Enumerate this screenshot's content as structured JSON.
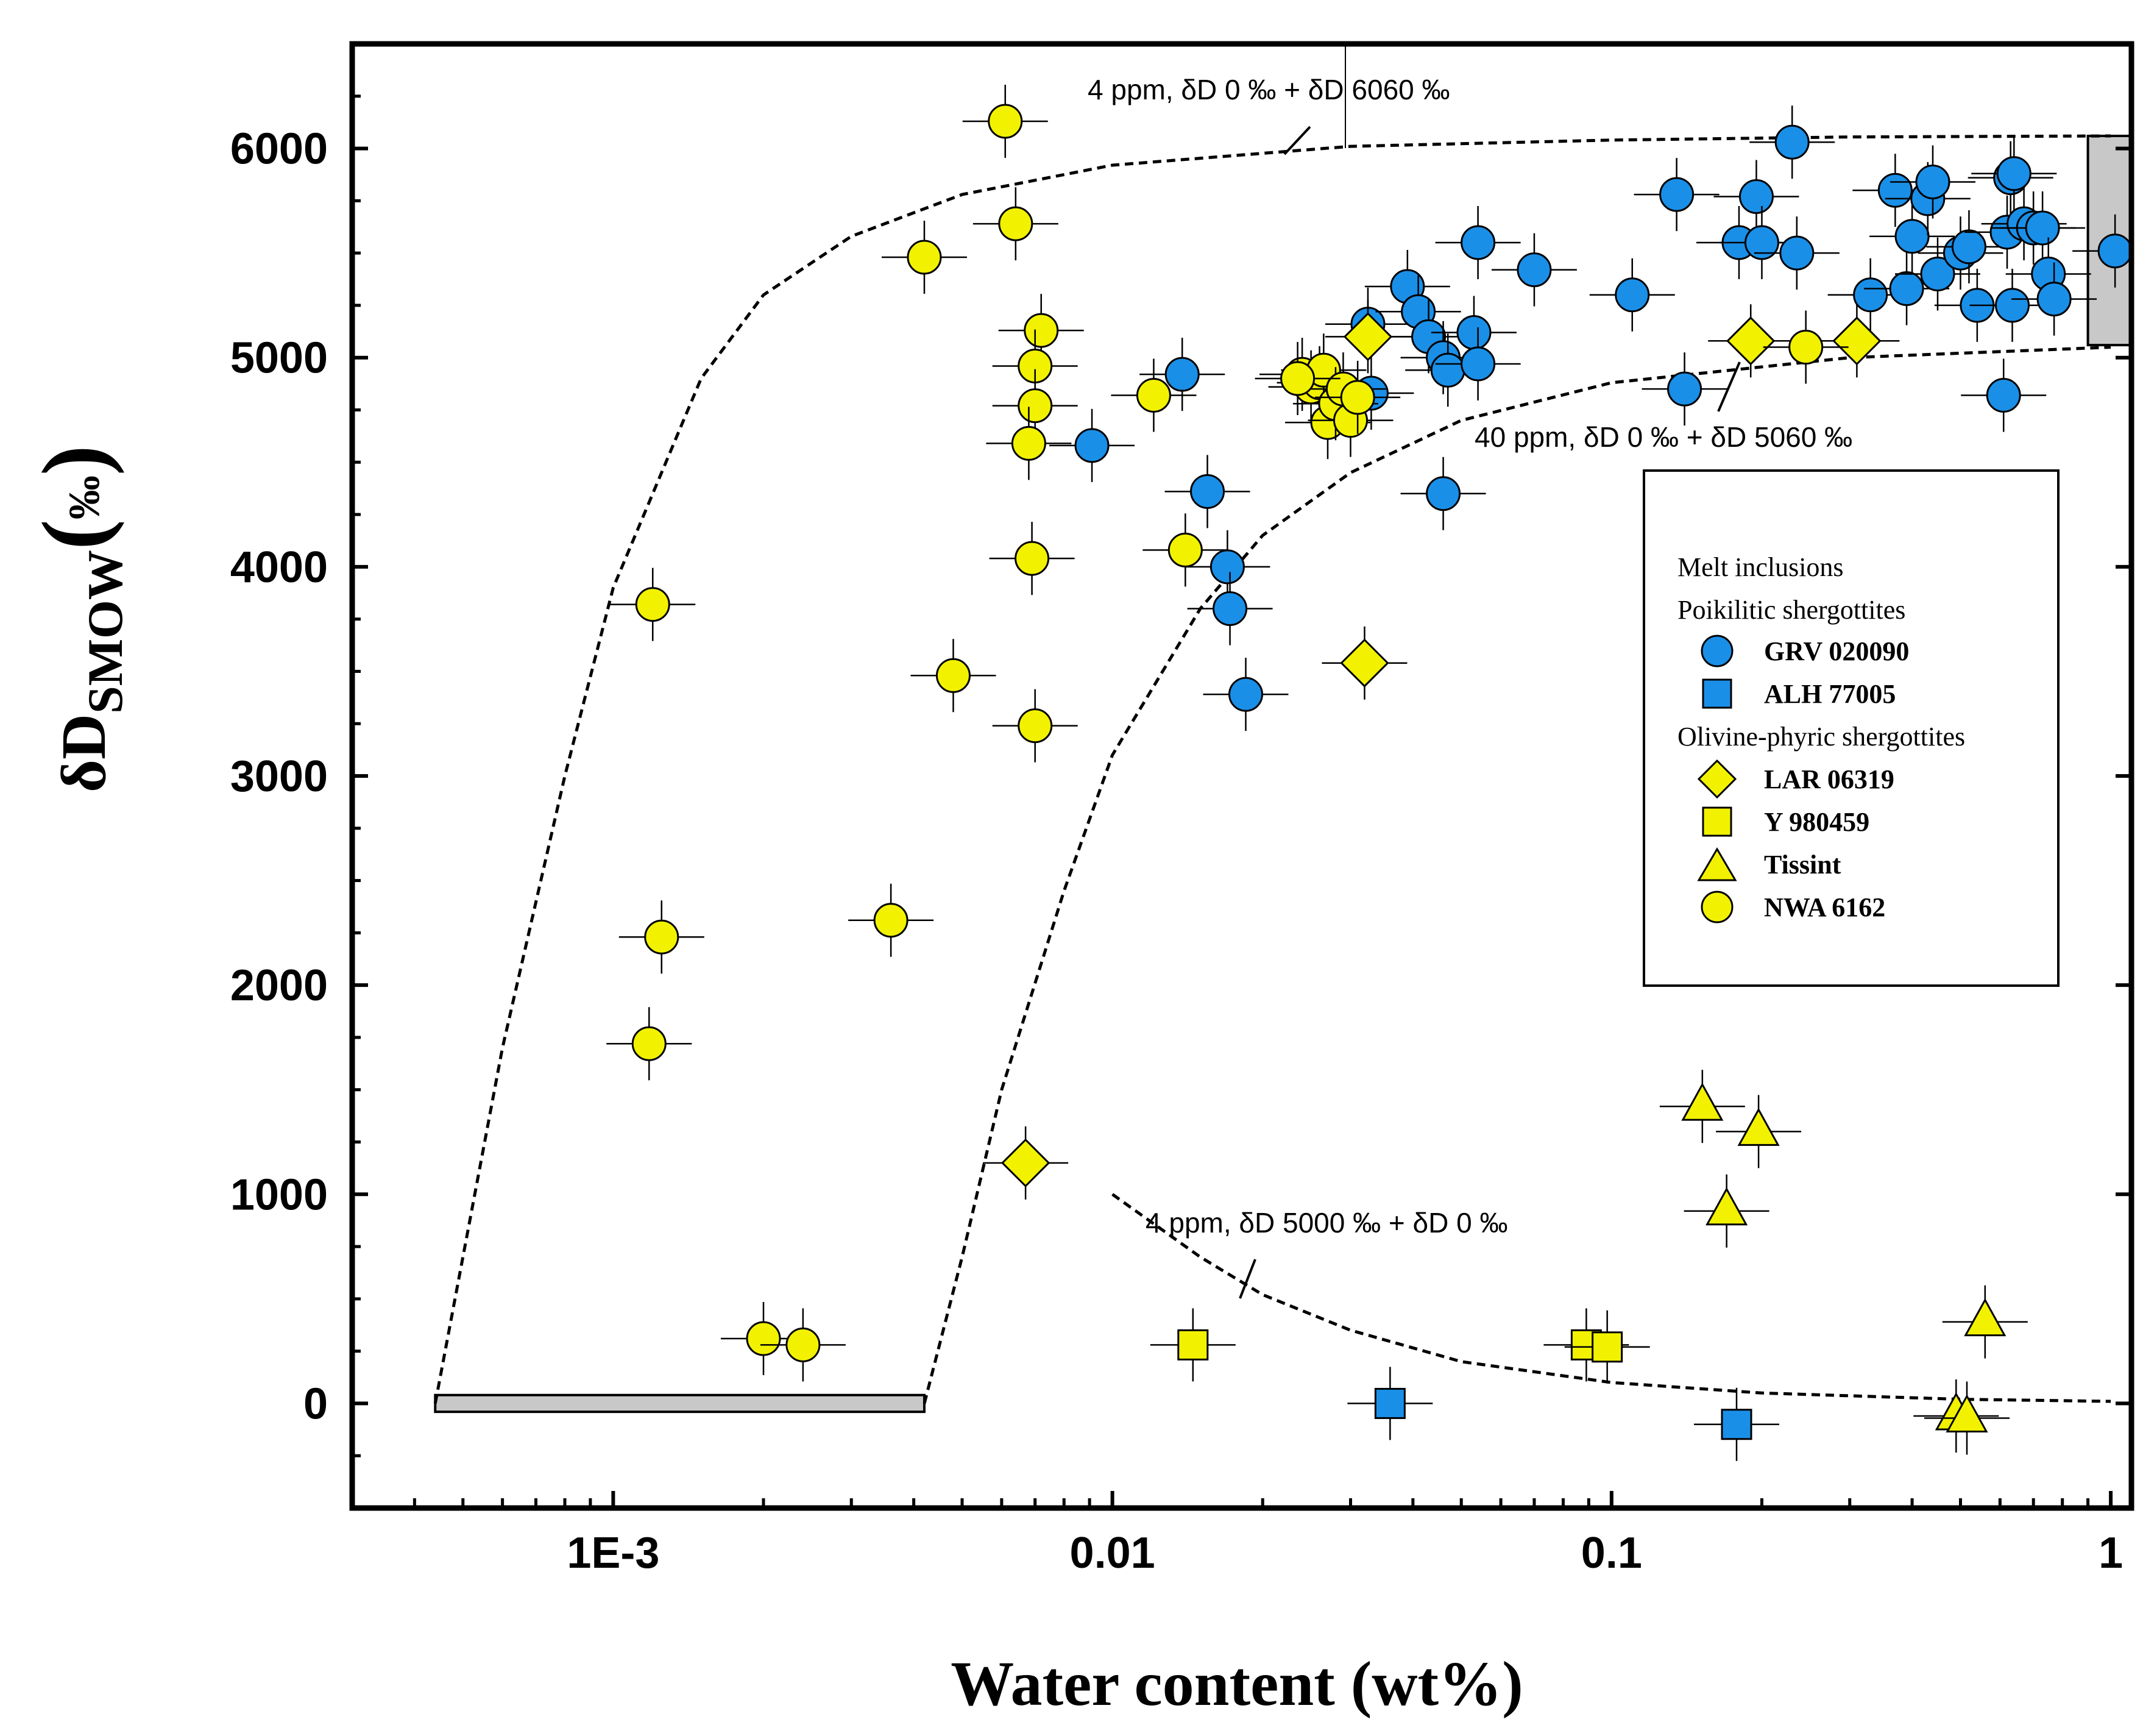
{
  "chart_data": {
    "type": "scatter",
    "title": "",
    "xlabel": "Water content (wt%)",
    "ylabel": "δD",
    "ylabel_sub": "SMOW",
    "ylabel_unit": "‰",
    "x_scale": "log",
    "xlim": [
      0.0003,
      1.1
    ],
    "ylim": [
      -500,
      6500
    ],
    "x_ticks": [
      {
        "value": 0.001,
        "label": "1E-3"
      },
      {
        "value": 0.01,
        "label": "0.01"
      },
      {
        "value": 0.1,
        "label": "0.1"
      },
      {
        "value": 1,
        "label": "1"
      }
    ],
    "y_ticks": [
      {
        "value": 0,
        "label": "0"
      },
      {
        "value": 1000,
        "label": "1000"
      },
      {
        "value": 2000,
        "label": "2000"
      },
      {
        "value": 3000,
        "label": "3000"
      },
      {
        "value": 4000,
        "label": "4000"
      },
      {
        "value": 5000,
        "label": "5000"
      },
      {
        "value": 6000,
        "label": "6000"
      }
    ],
    "curves": [
      {
        "name": "mix-4ppm-upper",
        "points": [
          [
            0.00044,
            0
          ],
          [
            0.0006,
            1700
          ],
          [
            0.0008,
            3000
          ],
          [
            0.001,
            3900
          ],
          [
            0.0015,
            4900
          ],
          [
            0.002,
            5300
          ],
          [
            0.003,
            5580
          ],
          [
            0.005,
            5780
          ],
          [
            0.01,
            5920
          ],
          [
            0.03,
            6010
          ],
          [
            0.1,
            6040
          ],
          [
            0.3,
            6055
          ],
          [
            1.0,
            6060
          ]
        ]
      },
      {
        "name": "mix-40ppm-lower",
        "points": [
          [
            0.0042,
            0
          ],
          [
            0.005,
            700
          ],
          [
            0.006,
            1500
          ],
          [
            0.008,
            2450
          ],
          [
            0.01,
            3100
          ],
          [
            0.015,
            3800
          ],
          [
            0.02,
            4150
          ],
          [
            0.03,
            4450
          ],
          [
            0.05,
            4700
          ],
          [
            0.1,
            4880
          ],
          [
            0.3,
            5000
          ],
          [
            1.0,
            5050
          ]
        ]
      },
      {
        "name": "mix-4ppm-decay",
        "points": [
          [
            0.01,
            1000
          ],
          [
            0.015,
            700
          ],
          [
            0.02,
            520
          ],
          [
            0.03,
            350
          ],
          [
            0.05,
            200
          ],
          [
            0.1,
            100
          ],
          [
            0.2,
            50
          ],
          [
            0.5,
            20
          ],
          [
            1.0,
            10
          ]
        ]
      }
    ],
    "annotations": [
      {
        "text": "4 ppm, δD 0 ‰ + δD 6060 ‰"
      },
      {
        "text": "40 ppm, δD 0 ‰ + δD 5060 ‰"
      },
      {
        "text": "4 ppm, δD 5000 ‰ + δD 0 ‰"
      }
    ],
    "shaded_regions": [
      {
        "name": "low-water-endmember",
        "x": [
          0.00044,
          0.0042
        ],
        "y": [
          -40,
          40
        ]
      },
      {
        "name": "high-dD-endmember",
        "x": [
          0.9,
          1.1
        ],
        "y": [
          5060,
          6060
        ]
      }
    ],
    "legend": {
      "position": "right",
      "groups": [
        {
          "heading": "Melt inclusions"
        },
        {
          "heading": "Poikilitic shergottites",
          "items": [
            {
              "label": "GRV 020090",
              "marker": "circle",
              "color": "#1a8fe8"
            },
            {
              "label": "ALH 77005",
              "marker": "square",
              "color": "#1a8fe8"
            }
          ]
        },
        {
          "heading": "Olivine-phyric shergottites",
          "items": [
            {
              "label": "LAR 06319",
              "marker": "diamond",
              "color": "#f2f200"
            },
            {
              "label": "Y 980459",
              "marker": "square",
              "color": "#f2f200"
            },
            {
              "label": "Tissint",
              "marker": "triangle",
              "color": "#f2f200"
            },
            {
              "label": "NWA 6162",
              "marker": "circle",
              "color": "#f2f200"
            }
          ]
        }
      ]
    },
    "series": [
      {
        "name": "GRV 020090",
        "marker": "circle",
        "color": "#1a8fe8",
        "points": [
          [
            0.0091,
            4580
          ],
          [
            0.0138,
            4920
          ],
          [
            0.0155,
            4360
          ],
          [
            0.017,
            4000
          ],
          [
            0.0172,
            3800
          ],
          [
            0.0185,
            3390
          ],
          [
            0.0325,
            5160
          ],
          [
            0.033,
            4830
          ],
          [
            0.039,
            5340
          ],
          [
            0.041,
            5220
          ],
          [
            0.043,
            5100
          ],
          [
            0.046,
            5000
          ],
          [
            0.047,
            4940
          ],
          [
            0.046,
            4350
          ],
          [
            0.053,
            5120
          ],
          [
            0.054,
            5550
          ],
          [
            0.054,
            4970
          ],
          [
            0.07,
            5420
          ],
          [
            0.11,
            5300
          ],
          [
            0.135,
            5780
          ],
          [
            0.14,
            4850
          ],
          [
            0.18,
            5550
          ],
          [
            0.195,
            5770
          ],
          [
            0.2,
            5550
          ],
          [
            0.23,
            6030
          ],
          [
            0.235,
            5500
          ],
          [
            0.33,
            5300
          ],
          [
            0.37,
            5800
          ],
          [
            0.39,
            5330
          ],
          [
            0.4,
            5580
          ],
          [
            0.43,
            5760
          ],
          [
            0.44,
            5840
          ],
          [
            0.45,
            5400
          ],
          [
            0.5,
            5500
          ],
          [
            0.52,
            5530
          ],
          [
            0.54,
            5250
          ],
          [
            0.61,
            4820
          ],
          [
            0.62,
            5600
          ],
          [
            0.63,
            5860
          ],
          [
            0.635,
            5250
          ],
          [
            0.64,
            5880
          ],
          [
            0.67,
            5640
          ],
          [
            0.7,
            5620
          ],
          [
            0.73,
            5620
          ],
          [
            0.75,
            5400
          ],
          [
            0.77,
            5280
          ],
          [
            1.02,
            5510
          ]
        ]
      },
      {
        "name": "ALH 77005",
        "marker": "square",
        "color": "#1a8fe8",
        "points": [
          [
            0.036,
            0
          ],
          [
            0.178,
            -100
          ]
        ]
      },
      {
        "name": "LAR 06319",
        "marker": "diamond",
        "color": "#f2f200",
        "points": [
          [
            0.0325,
            5100
          ],
          [
            0.032,
            3540
          ],
          [
            0.0067,
            1150
          ],
          [
            0.19,
            5080
          ],
          [
            0.31,
            5080
          ]
        ]
      },
      {
        "name": "Y 980459",
        "marker": "square",
        "color": "#f2f200",
        "points": [
          [
            0.0145,
            280
          ],
          [
            0.089,
            280
          ],
          [
            0.098,
            270
          ]
        ]
      },
      {
        "name": "Tissint",
        "marker": "triangle",
        "color": "#f2f200",
        "points": [
          [
            0.152,
            1420
          ],
          [
            0.197,
            1300
          ],
          [
            0.17,
            920
          ],
          [
            0.56,
            390
          ],
          [
            0.49,
            -60
          ],
          [
            0.515,
            -70
          ]
        ]
      },
      {
        "name": "NWA 6162",
        "marker": "circle",
        "color": "#f2f200",
        "points": [
          [
            0.0061,
            6130
          ],
          [
            0.0064,
            5640
          ],
          [
            0.0042,
            5480
          ],
          [
            0.0072,
            5130
          ],
          [
            0.007,
            4960
          ],
          [
            0.007,
            4770
          ],
          [
            0.0068,
            4590
          ],
          [
            0.0069,
            4040
          ],
          [
            0.0012,
            3820
          ],
          [
            0.0048,
            3480
          ],
          [
            0.007,
            3240
          ],
          [
            0.00125,
            2230
          ],
          [
            0.0036,
            2310
          ],
          [
            0.00118,
            1720
          ],
          [
            0.002,
            310
          ],
          [
            0.0024,
            280
          ],
          [
            0.0121,
            4820
          ],
          [
            0.014,
            4080
          ],
          [
            0.024,
            4920
          ],
          [
            0.025,
            4860
          ],
          [
            0.026,
            4880
          ],
          [
            0.0265,
            4940
          ],
          [
            0.027,
            4690
          ],
          [
            0.028,
            4780
          ],
          [
            0.029,
            4850
          ],
          [
            0.03,
            4700
          ],
          [
            0.031,
            4810
          ],
          [
            0.0235,
            4900
          ],
          [
            0.245,
            5050
          ]
        ]
      }
    ]
  }
}
